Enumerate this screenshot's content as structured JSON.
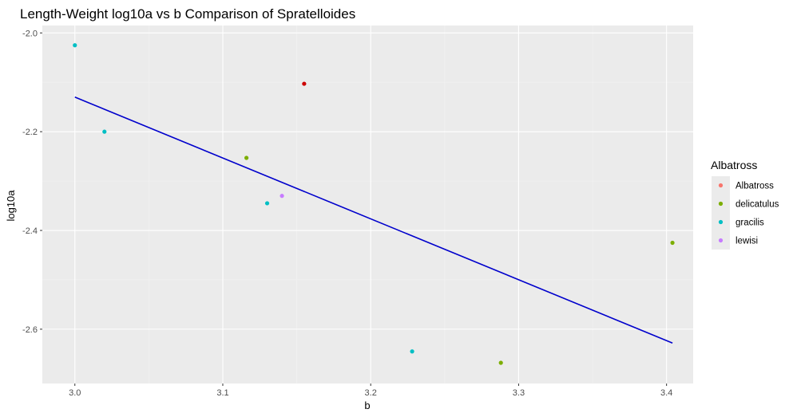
{
  "chart_data": {
    "type": "scatter",
    "title": "Length-Weight log10a vs b Comparison of Spratelloides",
    "xlabel": "b",
    "ylabel": "log10a",
    "xlim": [
      2.978,
      3.418
    ],
    "ylim": [
      -2.71,
      -1.985
    ],
    "x_ticks": [
      3.0,
      3.1,
      3.2,
      3.3,
      3.4
    ],
    "x_tick_labels": [
      "3.0",
      "3.1",
      "3.2",
      "3.3",
      "3.4"
    ],
    "y_ticks": [
      -2.0,
      -2.2,
      -2.4,
      -2.6
    ],
    "y_tick_labels": [
      "-2.0",
      "-2.2",
      "-2.4",
      "-2.6"
    ],
    "grid": true,
    "legend": {
      "title": "Albatross",
      "position": "right",
      "entries": [
        {
          "label": "Albatross",
          "color": "#F8766D"
        },
        {
          "label": "delicatulus",
          "color": "#7CAE00"
        },
        {
          "label": "gracilis",
          "color": "#00BFC4"
        },
        {
          "label": "lewisi",
          "color": "#C77CFF"
        }
      ]
    },
    "points": [
      {
        "x": 3.0,
        "y": -2.025,
        "group": "gracilis",
        "color": "#00BFC4"
      },
      {
        "x": 3.02,
        "y": -2.2,
        "group": "gracilis",
        "color": "#00BFC4"
      },
      {
        "x": 3.13,
        "y": -2.345,
        "group": "gracilis",
        "color": "#00BFC4"
      },
      {
        "x": 3.228,
        "y": -2.645,
        "group": "gracilis",
        "color": "#00BFC4"
      },
      {
        "x": 3.116,
        "y": -2.253,
        "group": "delicatulus",
        "color": "#7CAE00"
      },
      {
        "x": 3.288,
        "y": -2.668,
        "group": "delicatulus",
        "color": "#7CAE00"
      },
      {
        "x": 3.404,
        "y": -2.425,
        "group": "delicatulus",
        "color": "#7CAE00"
      },
      {
        "x": 3.14,
        "y": -2.33,
        "group": "lewisi",
        "color": "#C77CFF"
      },
      {
        "x": 3.155,
        "y": -2.103,
        "group": "",
        "color": "#CC0000"
      }
    ],
    "fit_line": {
      "color": "#0000CC",
      "points": [
        [
          3.0,
          -2.13
        ],
        [
          3.404,
          -2.628
        ]
      ]
    },
    "colors": {
      "panel_background": "#EBEBEB",
      "grid_major": "#FFFFFF",
      "grid_minor": "#F2F2F2"
    }
  }
}
